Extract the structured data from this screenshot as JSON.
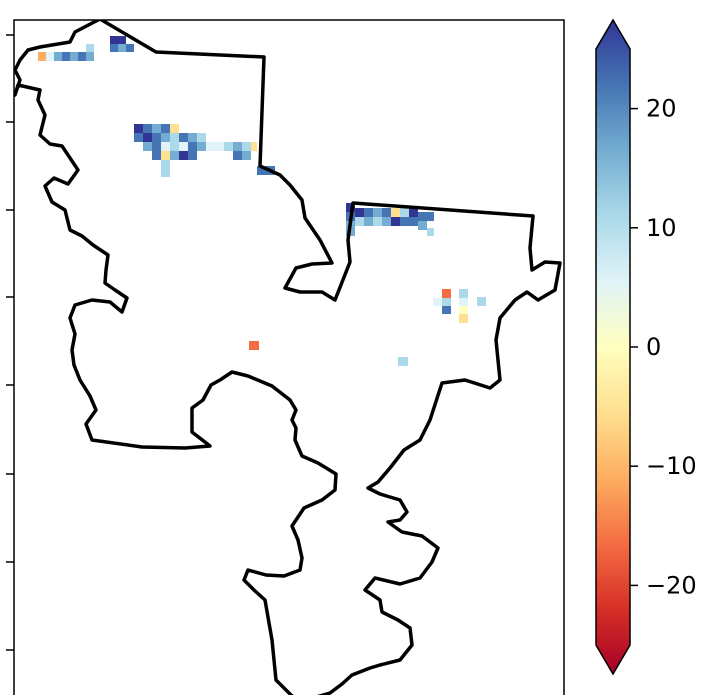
{
  "map": {
    "colorbar": {
      "colormap": "RdYlBu",
      "vmin": -25,
      "vmax": 25,
      "extend": "both",
      "ticks": [
        {
          "value": 20,
          "label": "20"
        },
        {
          "value": 10,
          "label": "10"
        },
        {
          "value": 0,
          "label": "0"
        },
        {
          "value": -10,
          "label": "−10"
        },
        {
          "value": -20,
          "label": "−20"
        }
      ],
      "stops": [
        "#a50026",
        "#d73027",
        "#f46d43",
        "#fdae61",
        "#fee090",
        "#ffffbf",
        "#e0f3f8",
        "#abd9e9",
        "#74add1",
        "#4575b4",
        "#313695"
      ]
    }
  }
}
